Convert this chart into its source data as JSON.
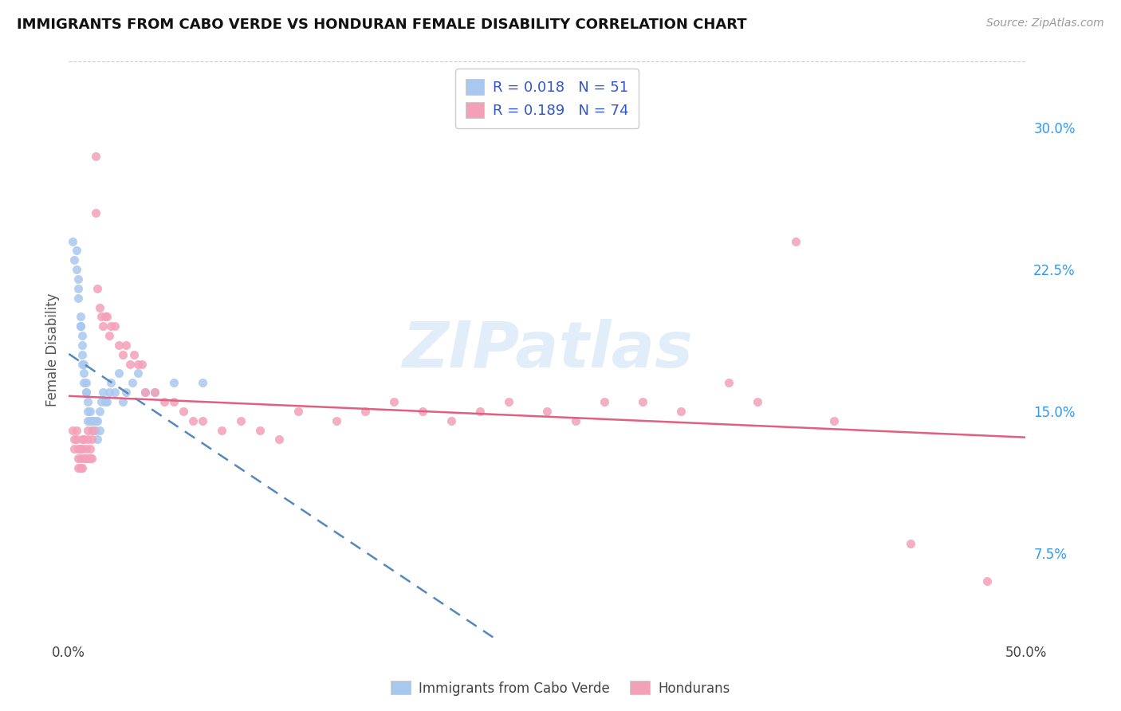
{
  "title": "IMMIGRANTS FROM CABO VERDE VS HONDURAN FEMALE DISABILITY CORRELATION CHART",
  "source": "Source: ZipAtlas.com",
  "ylabel": "Female Disability",
  "xlim": [
    0.0,
    0.5
  ],
  "ylim": [
    0.03,
    0.335
  ],
  "yticks_right": [
    0.075,
    0.15,
    0.225,
    0.3
  ],
  "yticklabels_right": [
    "7.5%",
    "15.0%",
    "22.5%",
    "30.0%"
  ],
  "cabo_verde_R": 0.018,
  "cabo_verde_N": 51,
  "hondurans_R": 0.189,
  "hondurans_N": 74,
  "cabo_verde_color": "#a8c8f0",
  "hondurans_color": "#f4a0b8",
  "cabo_verde_line_color": "#5588bb",
  "hondurans_line_color": "#e06080",
  "watermark": "ZIPatlas",
  "background_color": "#ffffff",
  "grid_color": "#cccccc",
  "legend_text_color": "#3355cc",
  "cabo_verde_x": [
    0.002,
    0.003,
    0.004,
    0.004,
    0.005,
    0.005,
    0.005,
    0.006,
    0.006,
    0.006,
    0.007,
    0.007,
    0.007,
    0.007,
    0.008,
    0.008,
    0.008,
    0.009,
    0.009,
    0.009,
    0.01,
    0.01,
    0.01,
    0.011,
    0.011,
    0.012,
    0.012,
    0.013,
    0.013,
    0.014,
    0.014,
    0.015,
    0.015,
    0.016,
    0.016,
    0.017,
    0.018,
    0.019,
    0.02,
    0.021,
    0.022,
    0.024,
    0.026,
    0.028,
    0.03,
    0.033,
    0.036,
    0.04,
    0.045,
    0.055,
    0.07
  ],
  "cabo_verde_y": [
    0.24,
    0.23,
    0.235,
    0.225,
    0.22,
    0.215,
    0.21,
    0.2,
    0.195,
    0.195,
    0.19,
    0.185,
    0.18,
    0.175,
    0.175,
    0.17,
    0.165,
    0.165,
    0.16,
    0.16,
    0.155,
    0.15,
    0.145,
    0.15,
    0.145,
    0.145,
    0.14,
    0.145,
    0.14,
    0.145,
    0.14,
    0.145,
    0.135,
    0.15,
    0.14,
    0.155,
    0.16,
    0.155,
    0.155,
    0.16,
    0.165,
    0.16,
    0.17,
    0.155,
    0.16,
    0.165,
    0.17,
    0.16,
    0.16,
    0.165,
    0.165
  ],
  "hondurans_x": [
    0.002,
    0.003,
    0.003,
    0.004,
    0.004,
    0.005,
    0.005,
    0.005,
    0.006,
    0.006,
    0.006,
    0.007,
    0.007,
    0.007,
    0.008,
    0.008,
    0.009,
    0.009,
    0.01,
    0.01,
    0.01,
    0.011,
    0.011,
    0.012,
    0.012,
    0.013,
    0.014,
    0.014,
    0.015,
    0.016,
    0.017,
    0.018,
    0.019,
    0.02,
    0.021,
    0.022,
    0.024,
    0.026,
    0.028,
    0.03,
    0.032,
    0.034,
    0.036,
    0.038,
    0.04,
    0.045,
    0.05,
    0.055,
    0.06,
    0.065,
    0.07,
    0.08,
    0.09,
    0.1,
    0.11,
    0.12,
    0.14,
    0.155,
    0.17,
    0.185,
    0.2,
    0.215,
    0.23,
    0.25,
    0.265,
    0.28,
    0.3,
    0.32,
    0.345,
    0.36,
    0.38,
    0.4,
    0.44,
    0.48
  ],
  "hondurans_y": [
    0.14,
    0.135,
    0.13,
    0.14,
    0.135,
    0.13,
    0.125,
    0.12,
    0.13,
    0.125,
    0.12,
    0.135,
    0.13,
    0.12,
    0.135,
    0.125,
    0.13,
    0.125,
    0.14,
    0.135,
    0.125,
    0.13,
    0.125,
    0.135,
    0.125,
    0.14,
    0.285,
    0.255,
    0.215,
    0.205,
    0.2,
    0.195,
    0.2,
    0.2,
    0.19,
    0.195,
    0.195,
    0.185,
    0.18,
    0.185,
    0.175,
    0.18,
    0.175,
    0.175,
    0.16,
    0.16,
    0.155,
    0.155,
    0.15,
    0.145,
    0.145,
    0.14,
    0.145,
    0.14,
    0.135,
    0.15,
    0.145,
    0.15,
    0.155,
    0.15,
    0.145,
    0.15,
    0.155,
    0.15,
    0.145,
    0.155,
    0.155,
    0.15,
    0.165,
    0.155,
    0.24,
    0.145,
    0.08,
    0.06
  ]
}
